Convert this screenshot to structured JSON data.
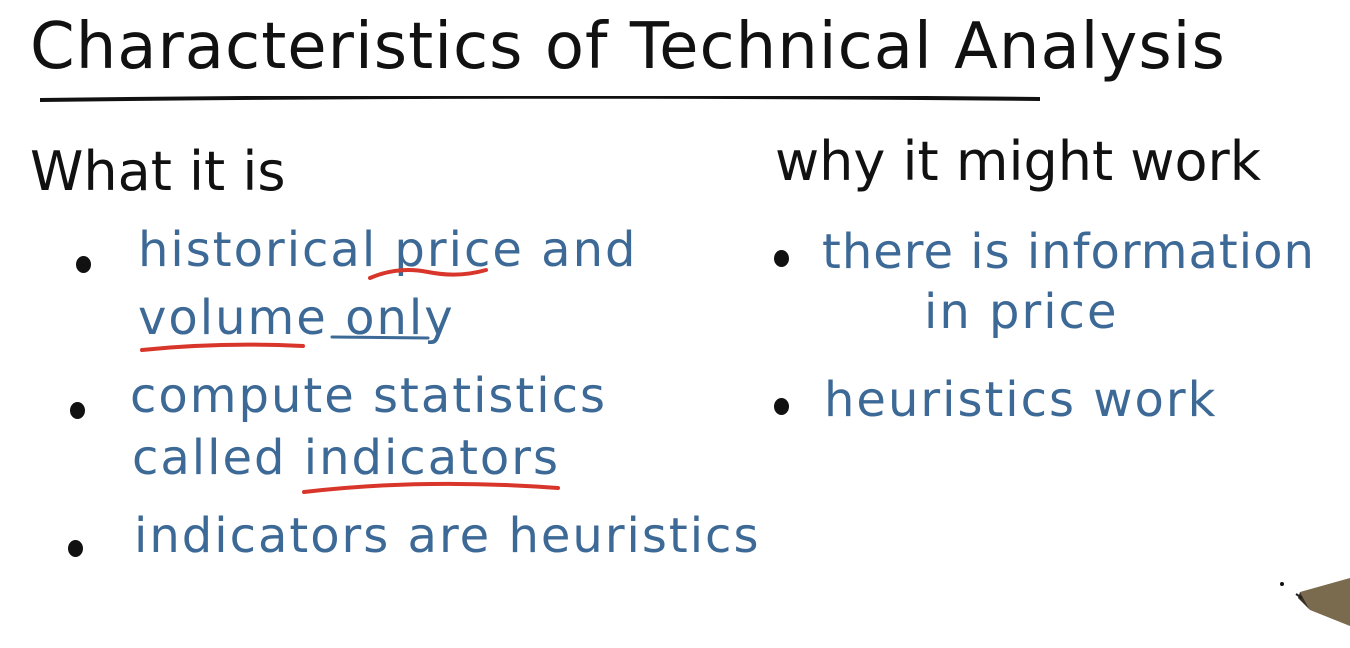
{
  "title": "Characteristics of Technical Analysis",
  "left_column": {
    "heading": "What it is",
    "items": [
      {
        "line1_parts": [
          "historical ",
          "price",
          " and"
        ],
        "line2_parts": [
          "volume",
          " ",
          "only"
        ]
      },
      {
        "line1_parts": [
          "compute statistics"
        ],
        "line2_parts": [
          "called ",
          "indicators"
        ]
      },
      {
        "line1_parts": [
          "indicators are heuristics"
        ]
      }
    ]
  },
  "right_column": {
    "heading": "why it might work",
    "items": [
      {
        "line1_parts": [
          "there is information"
        ],
        "line2_parts": [
          "in price"
        ]
      },
      {
        "line1_parts": [
          "heuristics work"
        ]
      }
    ]
  },
  "colors": {
    "ink_black": "#111111",
    "ink_blue": "#3d6996",
    "ink_red": "#d9362b"
  },
  "icons": {
    "pen": "pen-icon"
  }
}
